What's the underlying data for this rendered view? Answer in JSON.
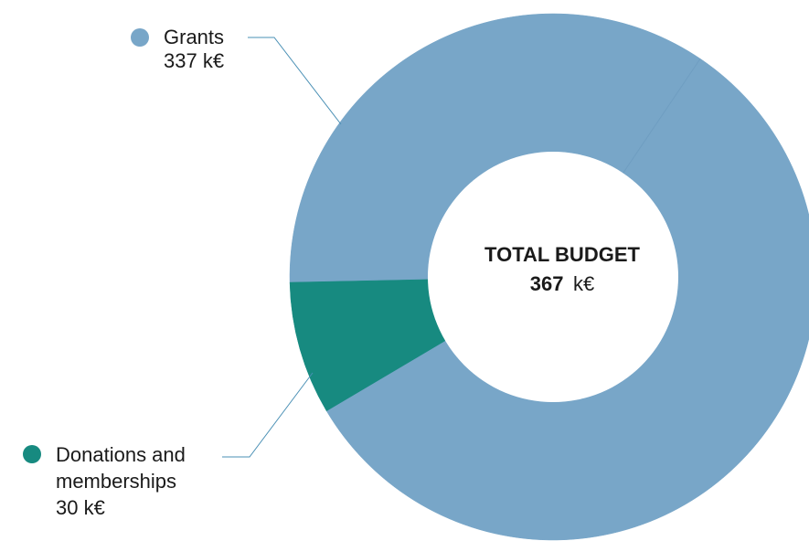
{
  "chart_data": {
    "type": "pie",
    "variant": "donut",
    "unit": "k€",
    "center_label": {
      "title": "TOTAL BUDGET",
      "value": "367",
      "unit": "k€"
    },
    "total": 367,
    "slices": [
      {
        "name": "Grants",
        "label_lines": [
          "Grants"
        ],
        "value": 337,
        "value_text": "337 k€",
        "color": "#78a6c8"
      },
      {
        "name": "Donations and memberships",
        "label_lines": [
          "Donations and",
          "memberships"
        ],
        "value": 30,
        "value_text": "30 k€",
        "color": "#178a80"
      }
    ],
    "leader_line_color": "#4a90b5"
  }
}
